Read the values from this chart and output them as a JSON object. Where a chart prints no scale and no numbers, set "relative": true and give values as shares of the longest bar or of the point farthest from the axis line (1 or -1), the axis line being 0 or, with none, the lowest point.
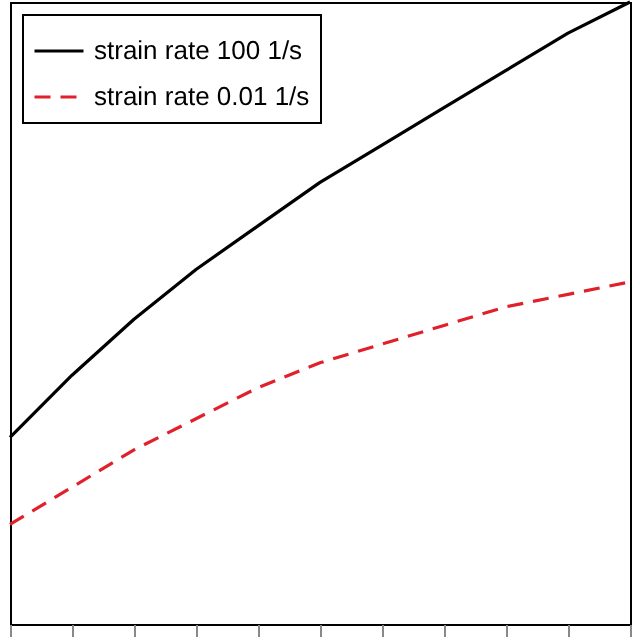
{
  "chart_data": {
    "type": "line",
    "relative": true,
    "categories": [
      null,
      null,
      null,
      null,
      null,
      null,
      null,
      null,
      null,
      null,
      null
    ],
    "legend": "top left",
    "grid": false,
    "marker": "none",
    "series": [
      {
        "name": "strain rate 100 1/s",
        "color": "#000000",
        "line_style": "solid",
        "values": [
          0.3,
          0.4,
          0.49,
          0.57,
          0.64,
          0.71,
          0.77,
          0.83,
          0.89,
          0.95,
          1.0
        ]
      },
      {
        "name": "strain rate 0.01 1/s",
        "color": "#e0202a",
        "line_style": "dashed",
        "values": [
          0.16,
          0.22,
          0.28,
          0.33,
          0.38,
          0.42,
          0.45,
          0.48,
          0.51,
          0.53,
          0.55
        ]
      }
    ]
  }
}
